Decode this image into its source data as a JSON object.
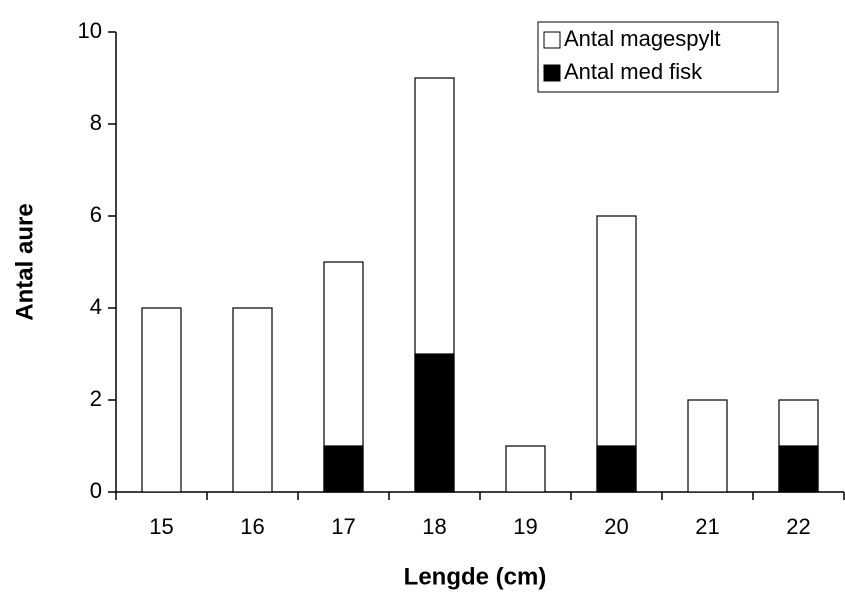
{
  "chart_data": {
    "type": "bar",
    "x_label": "Lengde (cm)",
    "y_label": "Antal aure",
    "categories": [
      "15",
      "16",
      "17",
      "18",
      "19",
      "20",
      "21",
      "22"
    ],
    "series": [
      {
        "name": "Antal magespylt",
        "color": "#ffffff",
        "values": [
          4,
          4,
          5,
          9,
          1,
          6,
          2,
          2
        ]
      },
      {
        "name": "Antal med fisk",
        "color": "#000000",
        "values": [
          0,
          0,
          1,
          3,
          0,
          1,
          0,
          1
        ]
      }
    ],
    "ylim": [
      0,
      10
    ],
    "yticks": [
      0,
      2,
      4,
      6,
      8,
      10
    ],
    "legend": "top-right"
  }
}
